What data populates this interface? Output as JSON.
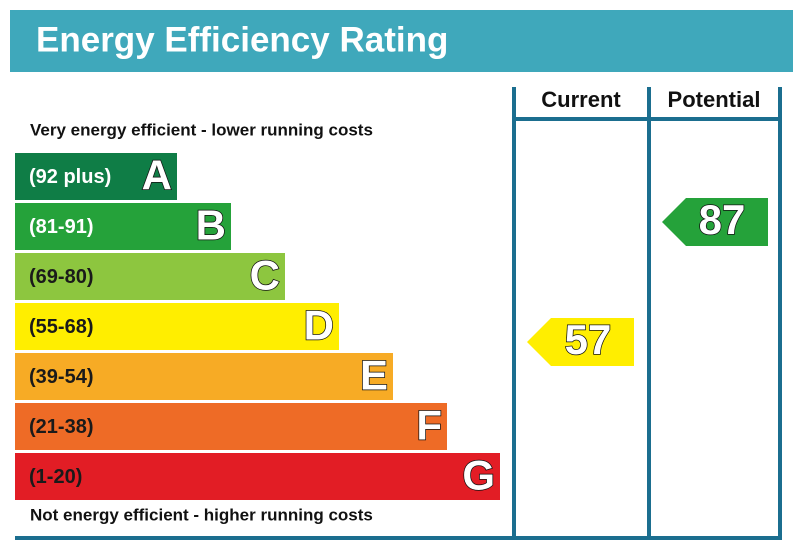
{
  "title": "Energy Efficiency Rating",
  "top_label": "Very energy efficient - lower running costs",
  "bottom_label": "Not energy efficient - higher running costs",
  "columns": [
    "Current",
    "Potential"
  ],
  "bands": [
    {
      "range": "(92 plus)",
      "letter": "A",
      "color": "#0f7d46",
      "text_color": "#ffffff"
    },
    {
      "range": "(81-91)",
      "letter": "B",
      "color": "#25a23a",
      "text_color": "#ffffff"
    },
    {
      "range": "(69-80)",
      "letter": "C",
      "color": "#8dc63f",
      "text_color": "#1a1a1a"
    },
    {
      "range": "(55-68)",
      "letter": "D",
      "color": "#ffee00",
      "text_color": "#1a1a1a"
    },
    {
      "range": "(39-54)",
      "letter": "E",
      "color": "#f7ab25",
      "text_color": "#1a1a1a"
    },
    {
      "range": "(21-38)",
      "letter": "F",
      "color": "#ee6b26",
      "text_color": "#1a1a1a"
    },
    {
      "range": "(1-20)",
      "letter": "G",
      "color": "#e21d25",
      "text_color": "#1a1a1a"
    }
  ],
  "current": {
    "value": "57",
    "color": "#ffee00"
  },
  "potential": {
    "value": "87",
    "color": "#25a23a"
  }
}
